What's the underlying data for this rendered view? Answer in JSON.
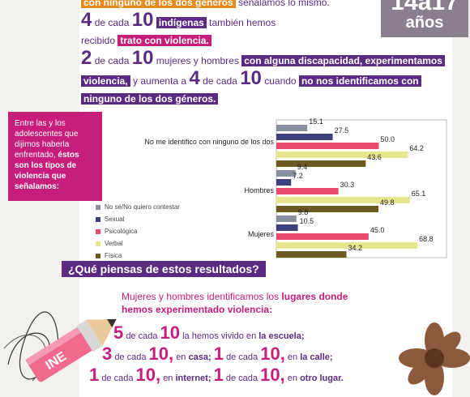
{
  "header": {
    "line0_hl": "con ninguno de los dos géneros",
    "line0_rest": "señalamos lo mismo.",
    "line1_num": "4",
    "line1_a": "de cada",
    "line1_num2": "10",
    "line1_hl": "indígenas",
    "line1_b": "también hemos",
    "line2_a": "recibido",
    "line2_hl": "trato con violencia.",
    "line3_num": "2",
    "line3_a": "de cada",
    "line3_num2": "10",
    "line3_b": "mujeres y hombres",
    "line3_hl": "con alguna discapacidad, experimentamos",
    "line4_hl": "violencia,",
    "line4_a": "y aumenta a",
    "line4_num": "4",
    "line4_b": "de cada",
    "line4_num2": "10",
    "line4_c": "cuando",
    "line4_hl2": "no nos identificamos con",
    "line5_hl": "ninguno de los dos géneros."
  },
  "age_badge": {
    "range": "14a17",
    "unit": "años"
  },
  "callout": {
    "text": "Entre las y los adolescentes que dijimos haberla enfrentado,",
    "bold": "éstos son los tipos de violencia que señalamos:"
  },
  "chart_data": {
    "type": "bar",
    "orientation": "horizontal",
    "categories": [
      "No me identifico con ninguno de los dos",
      "Hombres",
      "Mujeres"
    ],
    "series": [
      {
        "name": "No sé/No quiero contestar",
        "color": "#8a8fa0",
        "values": [
          15.1,
          9.4,
          9.8
        ]
      },
      {
        "name": "Sexual",
        "color": "#3d3f7a",
        "values": [
          27.5,
          7.2,
          10.5
        ]
      },
      {
        "name": "Psicológica",
        "color": "#e84a6e",
        "values": [
          50.0,
          30.3,
          45.0
        ]
      },
      {
        "name": "Verbal",
        "color": "#e6e68f",
        "values": [
          64.2,
          65.1,
          68.8
        ]
      },
      {
        "name": "Física",
        "color": "#6b5a22",
        "values": [
          43.6,
          49.8,
          34.2
        ]
      }
    ],
    "value_labels": {
      "No me identifico con ninguno de los dos": [
        "15.1",
        "27.5",
        "50.0",
        "64.2",
        "43.6"
      ],
      "Hombres": [
        "9.4",
        "7.2",
        "30.3",
        "65.1",
        "49.8"
      ],
      "Mujeres": [
        "9.8",
        "10.5",
        "45.0",
        "68.8",
        "34.2"
      ]
    },
    "xlim": [
      0,
      100
    ],
    "legend": "left"
  },
  "question": "¿Qué piensas de estos resultados?",
  "places": {
    "intro_a": "Mujeres y hombres identificamos los",
    "intro_hl": "lugares donde",
    "intro_b": "hemos experimentado violencia:",
    "r1_num": "5",
    "r1_a": "de cada",
    "r1_num2": "10",
    "r1_b": "la hemos vivido en",
    "r1_place": "la escuela;",
    "r2_num": "3",
    "r2_a": "de cada",
    "r2_num2": "10,",
    "r2_b": "en",
    "r2_place": "casa;",
    "r2_num3": "1",
    "r2_c": "de cada",
    "r2_num4": "10,",
    "r2_d": "en",
    "r2_place2": "la calle;",
    "r3_num": "1",
    "r3_a": "de cada",
    "r3_num2": "10,",
    "r3_b": "en",
    "r3_place": "internet;",
    "r3_num3": "1",
    "r3_c": "de cada",
    "r3_num4": "10,",
    "r3_d": "en",
    "r3_place2": "otro lugar."
  },
  "pencil_logo": "INE"
}
